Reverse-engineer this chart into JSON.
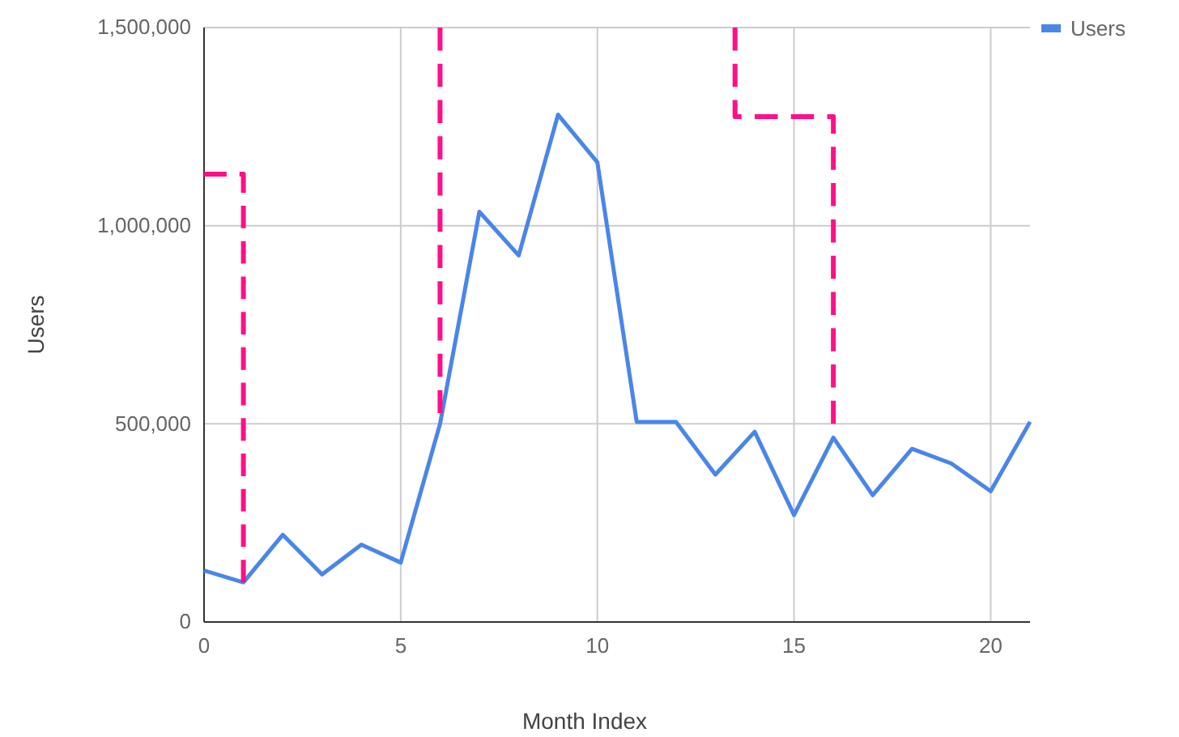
{
  "chart_data": {
    "type": "line",
    "xlabel": "Month Index",
    "ylabel": "Users",
    "x": [
      0,
      1,
      2,
      3,
      4,
      5,
      6,
      7,
      8,
      9,
      10,
      11,
      12,
      13,
      14,
      15,
      16,
      17,
      18,
      19,
      20,
      21
    ],
    "series": [
      {
        "name": "Users",
        "color": "#4a86e8",
        "values": [
          130000,
          100000,
          220000,
          120000,
          195000,
          150000,
          500000,
          1035000,
          925000,
          1280000,
          1160000,
          505000,
          505000,
          372000,
          480000,
          270000,
          465000,
          320000,
          437000,
          400000,
          330000,
          505000
        ]
      },
      {
        "color": "#ff0f88",
        "line_style": "dashed",
        "x": [
          0,
          1,
          1
        ],
        "values": [
          1130000,
          1130000,
          100000
        ]
      },
      {
        "color": "#ff0f88",
        "line_style": "dashed",
        "x": [
          6,
          6
        ],
        "values": [
          1500000,
          527000
        ]
      },
      {
        "color": "#ff0f88",
        "line_style": "dashed",
        "x": [
          13.5,
          13.5,
          16,
          16
        ],
        "values": [
          1500000,
          1275000,
          1275000,
          500000
        ]
      }
    ],
    "xlim": [
      0,
      21
    ],
    "xticks": [
      0,
      5,
      10,
      15,
      20
    ],
    "ylim": [
      0,
      1500000
    ],
    "yticks": [
      {
        "value": 0,
        "label": "0"
      },
      {
        "value": 500000,
        "label": "500,000"
      },
      {
        "value": 1000000,
        "label": "1,000,000"
      },
      {
        "value": 1500000,
        "label": "1,500,000"
      }
    ],
    "grid": true,
    "legend": "top right",
    "marker": "none"
  }
}
